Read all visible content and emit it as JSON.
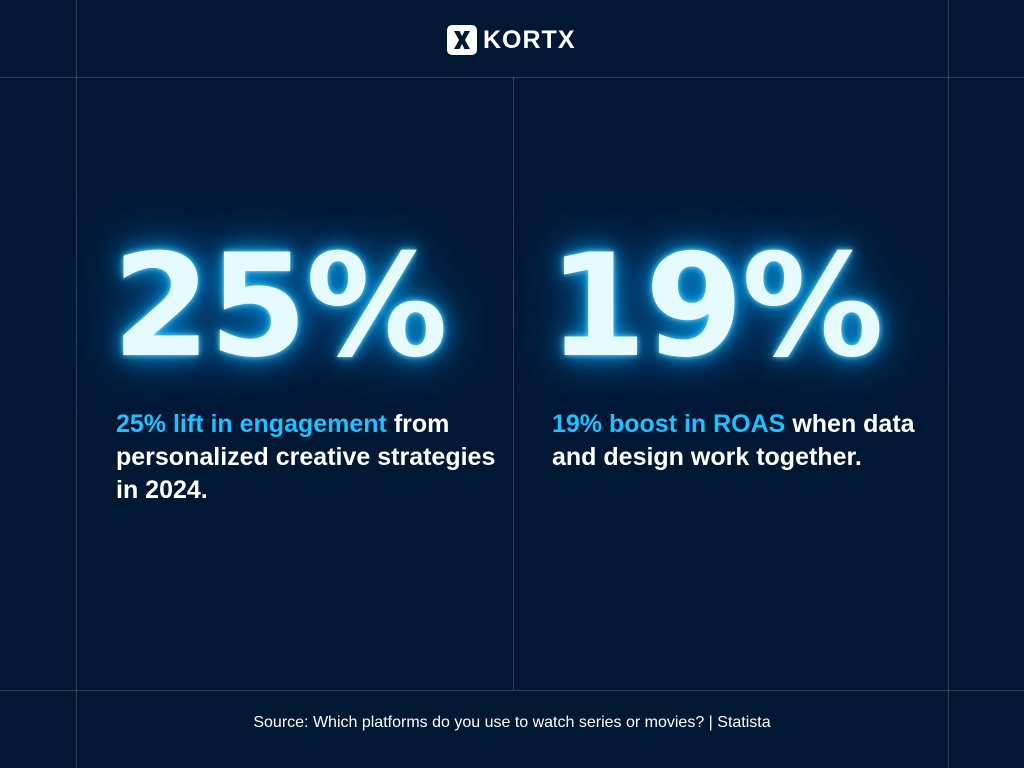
{
  "brand": {
    "logo_icon": "x-logo-icon",
    "name": "KORTX"
  },
  "stats": [
    {
      "value": "25%",
      "highlight": "25% lift in engagement",
      "rest": " from personalized creative strategies in 2024."
    },
    {
      "value": "19%",
      "highlight": "19% boost in ROAS",
      "rest": " when data and design work together."
    }
  ],
  "source": "Source: Which platforms do you use to watch series or movies? | Statista",
  "colors": {
    "background": "#001833",
    "accent": "#1ec0ff",
    "glow": "#00b4ff",
    "text": "#ffffff"
  }
}
